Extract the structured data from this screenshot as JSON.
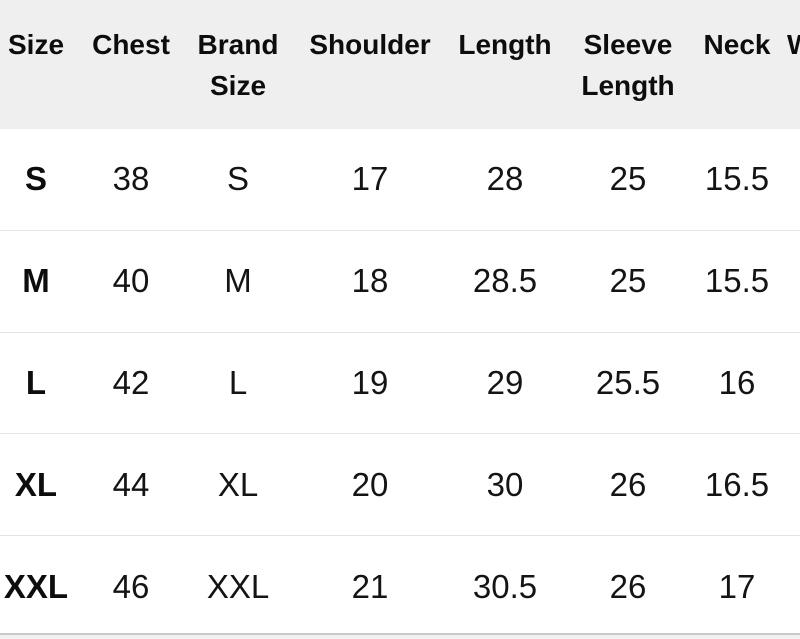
{
  "theme": {
    "header_background": "#efefef",
    "row_background": "#ffffff",
    "row_divider_color": "#e3e3e3",
    "bottom_divider_color": "#c9c9c9",
    "text_color": "#0d0d0d"
  },
  "size_chart": {
    "columns": [
      {
        "key": "size",
        "label": "Size"
      },
      {
        "key": "chest",
        "label": "Chest"
      },
      {
        "key": "brand_size",
        "label": "Brand Size"
      },
      {
        "key": "shoulder",
        "label": "Shoulder"
      },
      {
        "key": "length",
        "label": "Length"
      },
      {
        "key": "sleeve_length",
        "label": "Sleeve Length"
      },
      {
        "key": "neck",
        "label": "Neck"
      },
      {
        "key": "clipped_column",
        "label": "W"
      }
    ],
    "rows": [
      {
        "size": "S",
        "chest": "38",
        "brand_size": "S",
        "shoulder": "17",
        "length": "28",
        "sleeve_length": "25",
        "neck": "15.5"
      },
      {
        "size": "M",
        "chest": "40",
        "brand_size": "M",
        "shoulder": "18",
        "length": "28.5",
        "sleeve_length": "25",
        "neck": "15.5"
      },
      {
        "size": "L",
        "chest": "42",
        "brand_size": "L",
        "shoulder": "19",
        "length": "29",
        "sleeve_length": "25.5",
        "neck": "16"
      },
      {
        "size": "XL",
        "chest": "44",
        "brand_size": "XL",
        "shoulder": "20",
        "length": "30",
        "sleeve_length": "26",
        "neck": "16.5"
      },
      {
        "size": "XXL",
        "chest": "46",
        "brand_size": "XXL",
        "shoulder": "21",
        "length": "30.5",
        "sleeve_length": "26",
        "neck": "17"
      }
    ]
  }
}
